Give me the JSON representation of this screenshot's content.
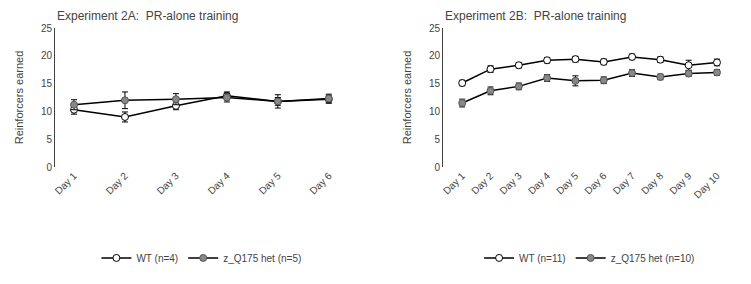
{
  "chart_data": [
    {
      "type": "line",
      "title": "Experiment 2A:  PR-alone training",
      "categories": [
        "Day 1",
        "Day 2",
        "Day 3",
        "Day 4",
        "Day 5",
        "Day 6"
      ],
      "series": [
        {
          "name": "WT (n=4)",
          "color": "#000000",
          "marker": "open",
          "values": [
            10.3,
            9.0,
            11.0,
            12.8,
            11.8,
            12.2
          ],
          "error": [
            0.8,
            0.9,
            0.7,
            0.7,
            0.7,
            0.7
          ]
        },
        {
          "name": "z_Q175 het (n=5)",
          "color": "#000000",
          "marker": "filled",
          "values": [
            11.2,
            12.0,
            12.2,
            12.5,
            11.8,
            12.3
          ],
          "error": [
            0.9,
            1.5,
            1.0,
            0.8,
            1.2,
            0.8
          ]
        }
      ],
      "ylabel": "Reinforcers earned",
      "ylim": [
        0,
        25
      ],
      "yticks": [
        0,
        5,
        10,
        15,
        20,
        25
      ],
      "grid": false,
      "legend": "bottom"
    },
    {
      "type": "line",
      "title": "Experiment 2B:  PR-alone training",
      "categories": [
        "Day 1",
        "Day 2",
        "Day 3",
        "Day 4",
        "Day 5",
        "Day 6",
        "Day 7",
        "Day 8",
        "Day 9",
        "Day 10"
      ],
      "series": [
        {
          "name": "WT (n=11)",
          "color": "#000000",
          "marker": "open",
          "values": [
            15.1,
            17.6,
            18.3,
            19.2,
            19.4,
            18.9,
            19.8,
            19.3,
            18.3,
            18.8
          ],
          "error": [
            0.5,
            0.6,
            0.5,
            0.5,
            0.5,
            0.5,
            0.5,
            0.5,
            0.9,
            0.6
          ]
        },
        {
          "name": "z_Q175 het (n=10)",
          "color": "#000000",
          "marker": "filled",
          "values": [
            11.5,
            13.7,
            14.5,
            16.0,
            15.5,
            15.6,
            16.9,
            16.2,
            16.8,
            17.0
          ],
          "error": [
            0.7,
            0.7,
            0.6,
            0.6,
            0.9,
            0.6,
            0.6,
            0.5,
            0.5,
            0.5
          ]
        }
      ],
      "ylabel": "Reinforcers earned",
      "ylim": [
        0,
        25
      ],
      "yticks": [
        0,
        5,
        10,
        15,
        20,
        25
      ],
      "grid": false,
      "legend": "bottom"
    }
  ]
}
